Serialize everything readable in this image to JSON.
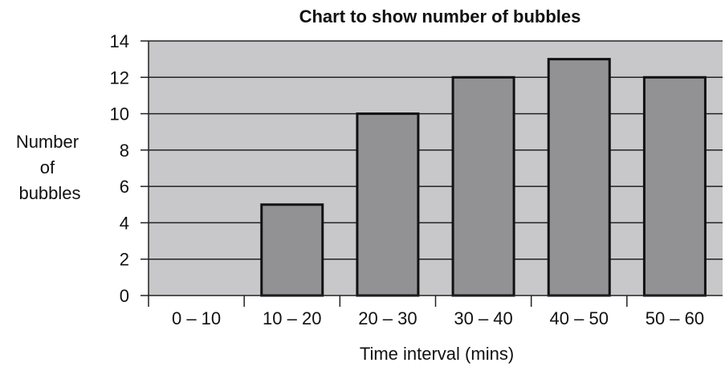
{
  "chart_data": {
    "type": "bar",
    "title": "Chart to show number of bubbles",
    "xlabel": "Time interval (mins)",
    "ylabel_lines": [
      "Number",
      "of",
      "bubbles"
    ],
    "categories": [
      "0 – 10",
      "10 – 20",
      "20 – 30",
      "30 – 40",
      "40 – 50",
      "50 – 60"
    ],
    "values": [
      0,
      5,
      10,
      12,
      13,
      12
    ],
    "ylim": [
      0,
      14
    ],
    "yticks": [
      0,
      2,
      4,
      6,
      8,
      10,
      12,
      14
    ],
    "grid": true,
    "colors": {
      "plot_background": "#c8c8ca",
      "bar_fill": "#929294",
      "bar_stroke": "#111111"
    }
  }
}
